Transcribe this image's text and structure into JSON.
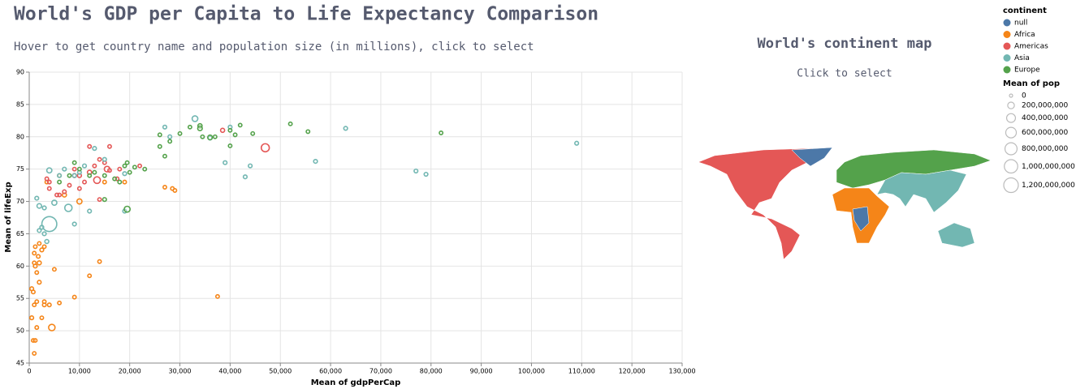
{
  "chart_data": [
    {
      "type": "scatter",
      "title": "World's GDP per Capita to Life Expectancy Comparison",
      "subtitle": "Hover to get country name and population size (in millions), click to select",
      "x_label": "Mean of gdpPerCap",
      "y_label": "Mean of lifeExp",
      "xlim": [
        0,
        130000
      ],
      "ylim": [
        45,
        90
      ],
      "grid": true,
      "xticks": [
        0,
        {
          "value": 10000,
          "label": "10,000"
        },
        {
          "value": 20000,
          "label": "20,000"
        },
        {
          "value": 30000,
          "label": "30,000"
        },
        {
          "value": 40000,
          "label": "40,000"
        },
        {
          "value": 50000,
          "label": "50,000"
        },
        {
          "value": 60000,
          "label": "60,000"
        },
        {
          "value": 70000,
          "label": "70,000"
        },
        {
          "value": 80000,
          "label": "80,000"
        },
        {
          "value": 90000,
          "label": "90,000"
        },
        {
          "value": 100000,
          "label": "100,000"
        },
        {
          "value": 110000,
          "label": "110,000"
        },
        {
          "value": 120000,
          "label": "120,000"
        },
        {
          "value": 130000,
          "label": "130,000"
        }
      ],
      "yticks": [
        45,
        50,
        55,
        60,
        65,
        70,
        75,
        80,
        85,
        90
      ],
      "legend": {
        "position": "right",
        "color_title": "continent",
        "size_title": "Mean of pop",
        "size_ticks": [
          0,
          {
            "value": 200000000,
            "label": "200,000,000"
          },
          {
            "value": 400000000,
            "label": "400,000,000"
          },
          {
            "value": 600000000,
            "label": "600,000,000"
          },
          {
            "value": 800000000,
            "label": "800,000,000"
          },
          {
            "value": 1000000000,
            "label": "1,000,000,000"
          },
          {
            "value": 1200000000,
            "label": "1,200,000,000"
          }
        ]
      },
      "series": [
        {
          "name": "null",
          "color": "#4c78a8",
          "x": [],
          "values": [],
          "sizes": []
        },
        {
          "name": "Africa",
          "color": "#f58518",
          "x": [
            500,
            800,
            1000,
            1200,
            1500,
            1800,
            2000,
            2500,
            3000,
            1000,
            1500,
            2000,
            2500,
            3000,
            4000,
            5000,
            4500,
            1000,
            800,
            1200,
            1500,
            500,
            6000,
            7000,
            9000,
            10000,
            12000,
            14000,
            15000,
            19000,
            27000,
            28500,
            29000,
            37500,
            6000,
            1200,
            2000,
            3000,
            1000,
            3500
          ],
          "values": [
            56.5,
            56,
            60.5,
            63,
            59,
            61.5,
            63.5,
            62.5,
            54,
            54,
            54.5,
            57.5,
            52,
            54.5,
            54,
            59.5,
            50.5,
            46.5,
            48.5,
            48.5,
            50.5,
            52,
            74,
            71,
            55.2,
            70,
            58.5,
            60.7,
            73,
            73,
            72.2,
            72,
            71.7,
            55.3,
            54.3,
            60,
            60.5,
            63,
            62,
            73
          ],
          "sizes": [
            20000000,
            15000000,
            10000000,
            10000000,
            10000000,
            15000000,
            10000000,
            20000000,
            15000000,
            10000000,
            10000000,
            20000000,
            10000000,
            10000000,
            15000000,
            10000000,
            180000000,
            10000000,
            10000000,
            10000000,
            10000000,
            20000000,
            10000000,
            35000000,
            10000000,
            90000000,
            10000000,
            10000000,
            10000000,
            10000000,
            10000000,
            10000000,
            10000000,
            10000000,
            10000000,
            20000000,
            30000000,
            10000000,
            10000000,
            10000000
          ]
        },
        {
          "name": "Americas",
          "color": "#e45756",
          "x": [
            6000,
            7000,
            8000,
            9000,
            10000,
            11000,
            12000,
            13000,
            14000,
            15000,
            16000,
            12000,
            13500,
            18000,
            22000,
            10000,
            4000,
            4000,
            14000,
            17500,
            38500,
            47000,
            9000,
            15500,
            5500,
            3500,
            16000
          ],
          "values": [
            71,
            71.5,
            72.5,
            74,
            72,
            73,
            74.5,
            75.5,
            76.5,
            76,
            78.5,
            78.5,
            73.3,
            75,
            75.5,
            74,
            73,
            72,
            70.3,
            73.5,
            81,
            78.3,
            75,
            75,
            71,
            73.5,
            74.8
          ],
          "sizes": [
            10000000,
            15000000,
            10000000,
            30000000,
            10000000,
            10000000,
            40000000,
            10000000,
            10000000,
            10000000,
            10000000,
            10000000,
            200000000,
            10000000,
            10000000,
            30000000,
            10000000,
            10000000,
            10000000,
            10000000,
            35000000,
            320000000,
            10000000,
            120000000,
            10000000,
            10000000,
            10000000
          ]
        },
        {
          "name": "Asia",
          "color": "#72b7b2",
          "x": [
            2000,
            4000,
            7800,
            4000,
            1500,
            2000,
            3000,
            5000,
            6000,
            7000,
            9000,
            10000,
            11000,
            12000,
            13000,
            15000,
            19000,
            19000,
            27000,
            28000,
            33000,
            36000,
            39000,
            40000,
            43000,
            44000,
            57000,
            63000,
            77000,
            79000,
            109000,
            3500,
            3000,
            2500,
            9000
          ],
          "values": [
            65.5,
            66.5,
            69,
            74.8,
            70.5,
            69.3,
            69,
            69.8,
            74,
            75,
            74,
            74.5,
            75.5,
            68.5,
            78.2,
            76.5,
            68.5,
            74.3,
            81.5,
            80,
            82.8,
            79.8,
            76,
            81.5,
            73.8,
            75.5,
            76.2,
            81.3,
            74.7,
            74.2,
            79,
            63.8,
            65,
            66,
            66.5
          ],
          "sizes": [
            20000000,
            1250000000,
            250000000,
            90000000,
            20000000,
            60000000,
            20000000,
            90000000,
            20000000,
            20000000,
            20000000,
            20000000,
            20000000,
            20000000,
            20000000,
            20000000,
            20000000,
            20000000,
            20000000,
            20000000,
            127000000,
            20000000,
            20000000,
            20000000,
            20000000,
            20000000,
            20000000,
            20000000,
            20000000,
            20000000,
            20000000,
            30000000,
            20000000,
            20000000,
            20000000
          ]
        },
        {
          "name": "Europe",
          "color": "#54a24b",
          "x": [
            6000,
            8000,
            9000,
            10000,
            12000,
            15000,
            15000,
            17000,
            18000,
            19000,
            19500,
            20000,
            21000,
            23000,
            19500,
            26000,
            26000,
            27000,
            28000,
            30000,
            32000,
            34000,
            34000,
            34500,
            36000,
            37000,
            40000,
            40000,
            41000,
            42000,
            44500,
            52000,
            55500,
            82000,
            13000
          ],
          "values": [
            73,
            74,
            76,
            75,
            74,
            70.3,
            74,
            73.5,
            73,
            75.5,
            76,
            74.5,
            75.3,
            75,
            68.8,
            78.5,
            80.3,
            77,
            79.3,
            80.5,
            81.5,
            81.7,
            81.3,
            80,
            79.9,
            80,
            81,
            78.6,
            80.3,
            81.8,
            80.5,
            82,
            80.8,
            80.6,
            74.5
          ],
          "sizes": [
            10000000,
            10000000,
            10000000,
            10000000,
            10000000,
            20000000,
            10000000,
            10000000,
            10000000,
            10000000,
            10000000,
            10000000,
            10000000,
            10000000,
            143000000,
            10000000,
            10000000,
            10000000,
            10000000,
            10000000,
            10000000,
            40000000,
            60000000,
            10000000,
            65000000,
            10000000,
            10000000,
            10000000,
            10000000,
            10000000,
            10000000,
            10000000,
            10000000,
            10000000,
            10000000
          ]
        }
      ]
    },
    {
      "type": "map",
      "title": "World's continent map",
      "subtitle": "Click to select"
    }
  ]
}
